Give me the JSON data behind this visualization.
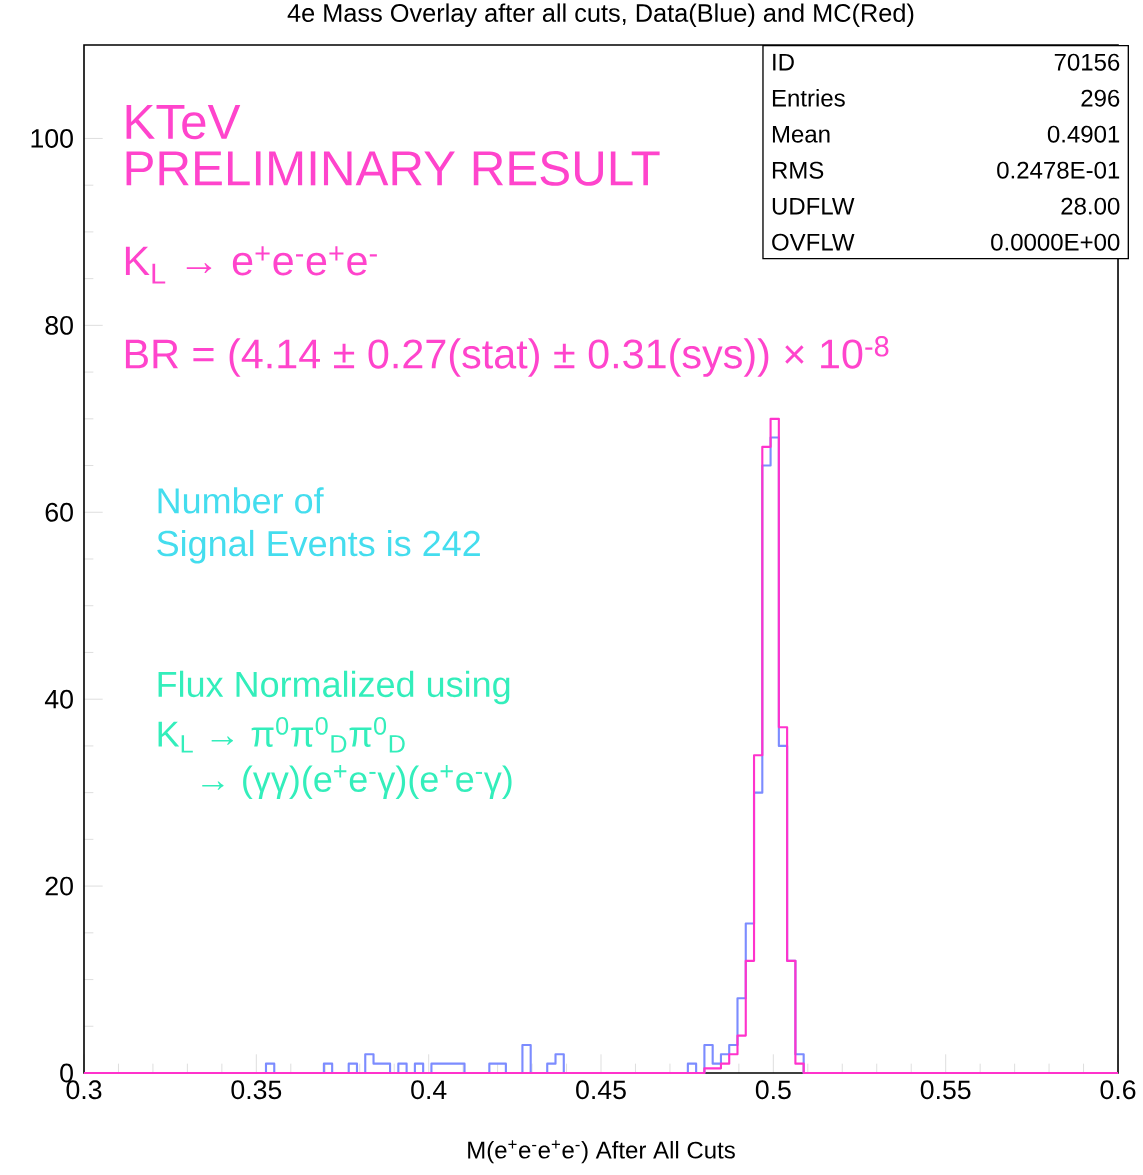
{
  "chart_data": {
    "type": "histogram",
    "title": "4e Mass Overlay after all cuts, Data(Blue) and MC(Red)",
    "xlabel": "M(e$^{+}$e$^{-}$e$^{+}$e$^{-}$) After All Cuts",
    "bins": [
      0.3,
      0.3024,
      0.3048,
      0.3072,
      0.3096,
      0.312,
      0.3144,
      0.3168,
      0.3192,
      0.3216,
      0.324,
      0.3264,
      0.3288,
      0.3312,
      0.3336,
      0.336,
      0.3384,
      0.3408,
      0.3432,
      0.3456,
      0.348,
      0.3504,
      0.3528,
      0.3552,
      0.3576,
      0.36,
      0.3624,
      0.3648,
      0.3672,
      0.3696,
      0.372,
      0.3744,
      0.3768,
      0.3792,
      0.3816,
      0.384,
      0.3864,
      0.3888,
      0.3912,
      0.3936,
      0.396,
      0.3984,
      0.4008,
      0.4032,
      0.4056,
      0.408,
      0.4104,
      0.4128,
      0.4152,
      0.4176,
      0.42,
      0.4224,
      0.4248,
      0.4272,
      0.4296,
      0.432,
      0.4344,
      0.4368,
      0.4392,
      0.4416,
      0.444,
      0.4464,
      0.4488,
      0.4512,
      0.4536,
      0.456,
      0.4584,
      0.4608,
      0.4632,
      0.4656,
      0.468,
      0.4704,
      0.4728,
      0.4752,
      0.4776,
      0.48,
      0.4824,
      0.4848,
      0.4872,
      0.4896,
      0.492,
      0.4944,
      0.4968,
      0.4992,
      0.5016,
      0.504,
      0.5064,
      0.5088,
      0.5112,
      0.5136,
      0.516,
      0.5184,
      0.5208,
      0.5232,
      0.5256,
      0.528,
      0.5304,
      0.5328,
      0.5352,
      0.5376,
      0.54,
      0.5424,
      0.5448,
      0.5472,
      0.5496,
      0.552,
      0.5544,
      0.5568,
      0.5592,
      0.5616,
      0.564,
      0.5664,
      0.5688,
      0.5712,
      0.5736,
      0.576,
      0.5784,
      0.5808,
      0.5832,
      0.5856,
      0.588,
      0.5904,
      0.5928,
      0.5952,
      0.5976,
      0.6
    ],
    "series": [
      {
        "color": "#7c8cff",
        "values": [
          0,
          0,
          0,
          0,
          0,
          0,
          0,
          0,
          0,
          0,
          0,
          0,
          0,
          0,
          0,
          0,
          0,
          0,
          0,
          0,
          0,
          0,
          1,
          0,
          0,
          0,
          0,
          0,
          0,
          1,
          0,
          0,
          1,
          0,
          2,
          1,
          1,
          0,
          1,
          0,
          1,
          0,
          1,
          1,
          1,
          1,
          0,
          0,
          0,
          1,
          1,
          0,
          0,
          3,
          0,
          0,
          1,
          2,
          0,
          0,
          0,
          0,
          0,
          0,
          0,
          0,
          0,
          0,
          0,
          0,
          0,
          0,
          0,
          1,
          0,
          3,
          1,
          2,
          3,
          8,
          16,
          30,
          65,
          68,
          35,
          12,
          2,
          0,
          0,
          0,
          0,
          0,
          0,
          0,
          0,
          0,
          0,
          0,
          0,
          0,
          0,
          0,
          0,
          0,
          0,
          0,
          0,
          0,
          0,
          0,
          0,
          0,
          0,
          0,
          0,
          0,
          0,
          0,
          0,
          0,
          0,
          0,
          0,
          0,
          0
        ]
      },
      {
        "color": "#ff33cc",
        "values": [
          0,
          0,
          0,
          0,
          0,
          0,
          0,
          0,
          0,
          0,
          0,
          0,
          0,
          0,
          0,
          0,
          0,
          0,
          0,
          0,
          0,
          0,
          0,
          0,
          0,
          0,
          0,
          0,
          0,
          0,
          0,
          0,
          0,
          0,
          0,
          0,
          0,
          0,
          0,
          0,
          0,
          0,
          0,
          0,
          0,
          0,
          0,
          0,
          0,
          0,
          0,
          0,
          0,
          0,
          0,
          0,
          0,
          0,
          0,
          0,
          0,
          0,
          0,
          0,
          0,
          0,
          0,
          0,
          0,
          0,
          0,
          0,
          0,
          0,
          0,
          0.5,
          0.5,
          1,
          2,
          4,
          12,
          34,
          67,
          70,
          37,
          12,
          1,
          0,
          0,
          0,
          0,
          0,
          0,
          0,
          0,
          0,
          0,
          0,
          0,
          0,
          0,
          0,
          0,
          0,
          0,
          0,
          0,
          0,
          0,
          0,
          0,
          0,
          0,
          0,
          0,
          0,
          0,
          0,
          0,
          0,
          0,
          0,
          0,
          0,
          0
        ]
      }
    ],
    "xlim": [
      0.3,
      0.6
    ],
    "ylim": [
      0,
      110
    ],
    "xticks": [
      0.3,
      0.35,
      0.4,
      0.45,
      0.5,
      0.55,
      0.6
    ],
    "yticks": [
      0,
      20,
      40,
      60,
      80,
      100
    ],
    "annotations": [
      "ID",
      "70156",
      "Entries",
      "296",
      "Mean",
      "0.4901",
      "RMS",
      "0.2478E-01",
      "UDFLW",
      "28.00",
      "OVFLW",
      "0.0000E+00",
      "KTeV",
      "PRELIMINARY RESULT",
      "K$_{L}$ → e$^{+}$e$^{-}$e$^{+}$e$^{-}$",
      "BR = (4.14 ± 0.27(stat) ± 0.31(sys)) × 10$^{-8}$",
      "Number of",
      "Signal Events is 242",
      "Flux Normalized using",
      "K$_{L}$ → π$^{0}$π$^{0}$$_{D}$π$^{0}$$_{D}$",
      "→ (γγ)(e$^{+}$e$^{-}$γ)(e$^{+}$e$^{-}$γ)"
    ]
  }
}
